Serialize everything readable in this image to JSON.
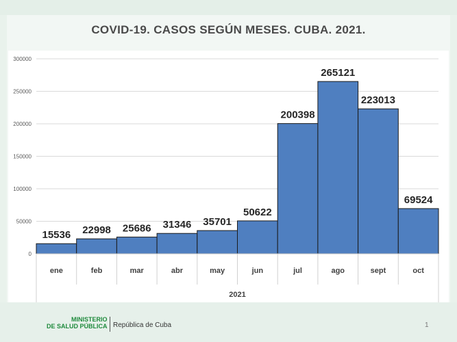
{
  "slide": {
    "ministry_line1": "MINISTERIO",
    "ministry_line2": "DE SALUD PÚBLICA",
    "country": "República de Cuba",
    "page_number": "1"
  },
  "chart_data": {
    "type": "bar",
    "title": "COVID-19. CASOS SEGÚN MESES. CUBA. 2021.",
    "categories": [
      "ene",
      "feb",
      "mar",
      "abr",
      "may",
      "jun",
      "jul",
      "ago",
      "sept",
      "oct"
    ],
    "group_label": "2021",
    "values": [
      15536,
      22998,
      25686,
      31346,
      35701,
      50622,
      200398,
      265121,
      223013,
      69524
    ],
    "ylim": [
      0,
      300000
    ],
    "yticks": [
      0,
      50000,
      100000,
      150000,
      200000,
      250000,
      300000
    ],
    "xlabel": "",
    "ylabel": "",
    "grid": true,
    "bar_color": "#4f7fc0",
    "bar_edge_color": "#1a1a1a"
  }
}
